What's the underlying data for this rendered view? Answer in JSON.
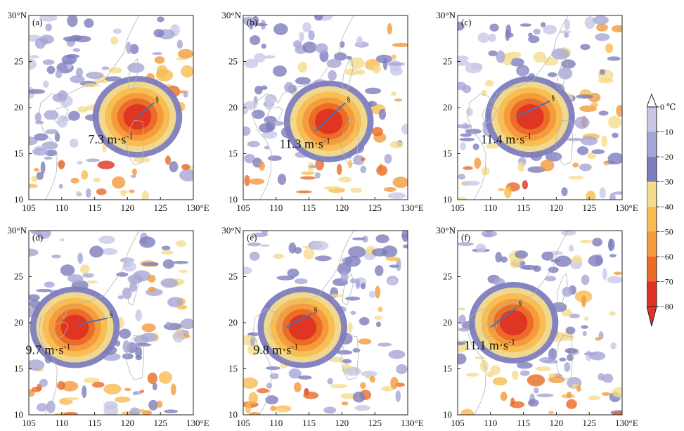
{
  "figure": {
    "panels": [
      {
        "id": "a",
        "label": "(a)",
        "speed": "7.3 m·s",
        "storm_symbol": "§",
        "lat_top": "30°N",
        "lat_ticks": [
          "25",
          "20",
          "15",
          "10"
        ],
        "lon_ticks": [
          "105",
          "110",
          "115",
          "120",
          "125",
          "130°E"
        ],
        "storm_center": [
          121.5,
          19.0
        ],
        "track_start": [
          121.5,
          19.0
        ],
        "track_end": [
          124.0,
          20.5
        ]
      },
      {
        "id": "b",
        "label": "(b)",
        "speed": "11.3 m·s",
        "storm_symbol": "§",
        "lat_top": "30°N",
        "lat_ticks": [
          "25",
          "20",
          "15",
          "10"
        ],
        "lon_ticks": [
          "105",
          "110",
          "115",
          "120",
          "125",
          "130°E"
        ],
        "storm_center": [
          118.0,
          18.5
        ],
        "track_start": [
          116.0,
          17.5
        ],
        "track_end": [
          120.5,
          20.5
        ]
      },
      {
        "id": "c",
        "label": "(c)",
        "speed": "11.4 m·s",
        "storm_symbol": "§",
        "lat_top": "30°N",
        "lat_ticks": [
          "25",
          "20",
          "15",
          "10"
        ],
        "lon_ticks": [
          "105",
          "110",
          "115",
          "120",
          "125",
          "130°E"
        ],
        "storm_center": [
          116.0,
          19.0
        ],
        "track_start": [
          114.0,
          19.0
        ],
        "track_end": [
          119.0,
          20.7
        ]
      },
      {
        "id": "d",
        "label": "(d)",
        "speed": "9.7 m·s",
        "storm_symbol": "§",
        "lat_top": "30°N",
        "lat_ticks": [
          "25",
          "20",
          "15",
          "10"
        ],
        "lon_ticks": [
          "105",
          "110",
          "115",
          "120",
          "125",
          "130°E"
        ],
        "storm_center": [
          112.0,
          19.5
        ],
        "track_start": [
          112.5,
          19.8
        ],
        "track_end": [
          117.0,
          20.5
        ]
      },
      {
        "id": "e",
        "label": "(e)",
        "speed": "9.8 m·s",
        "storm_symbol": "§",
        "lat_top": "30°N",
        "lat_ticks": [
          "25",
          "20",
          "15",
          "10"
        ],
        "lon_ticks": [
          "105",
          "110",
          "115",
          "120",
          "125",
          "130°E"
        ],
        "storm_center": [
          114.0,
          19.5
        ],
        "track_start": [
          111.5,
          19.5
        ],
        "track_end": [
          115.5,
          21.0
        ]
      },
      {
        "id": "f",
        "label": "(f)",
        "speed": "11.1 m·s",
        "storm_symbol": "§",
        "lat_top": "30°N",
        "lat_ticks": [
          "25",
          "20",
          "15",
          "10"
        ],
        "lon_ticks": [
          "105",
          "110",
          "115",
          "120",
          "125",
          "130°E"
        ],
        "storm_center": [
          113.5,
          20.0
        ],
        "track_start": [
          110.0,
          19.5
        ],
        "track_end": [
          114.0,
          21.7
        ]
      }
    ],
    "speed_exponent": "-1",
    "colorbar": {
      "labels": [
        "0 ℃",
        "−10",
        "−20",
        "−30",
        "−40",
        "−50",
        "−60",
        "−70",
        "−80"
      ],
      "colors": [
        "#ffffff",
        "#c8c8e6",
        "#a6a6d6",
        "#7d7dbd",
        "#f5dc8c",
        "#f8bc50",
        "#f39a3c",
        "#ea6a26",
        "#de3322"
      ]
    },
    "colors": {
      "land_line": "#b4b4b4",
      "track": "#4a72b4"
    }
  }
}
